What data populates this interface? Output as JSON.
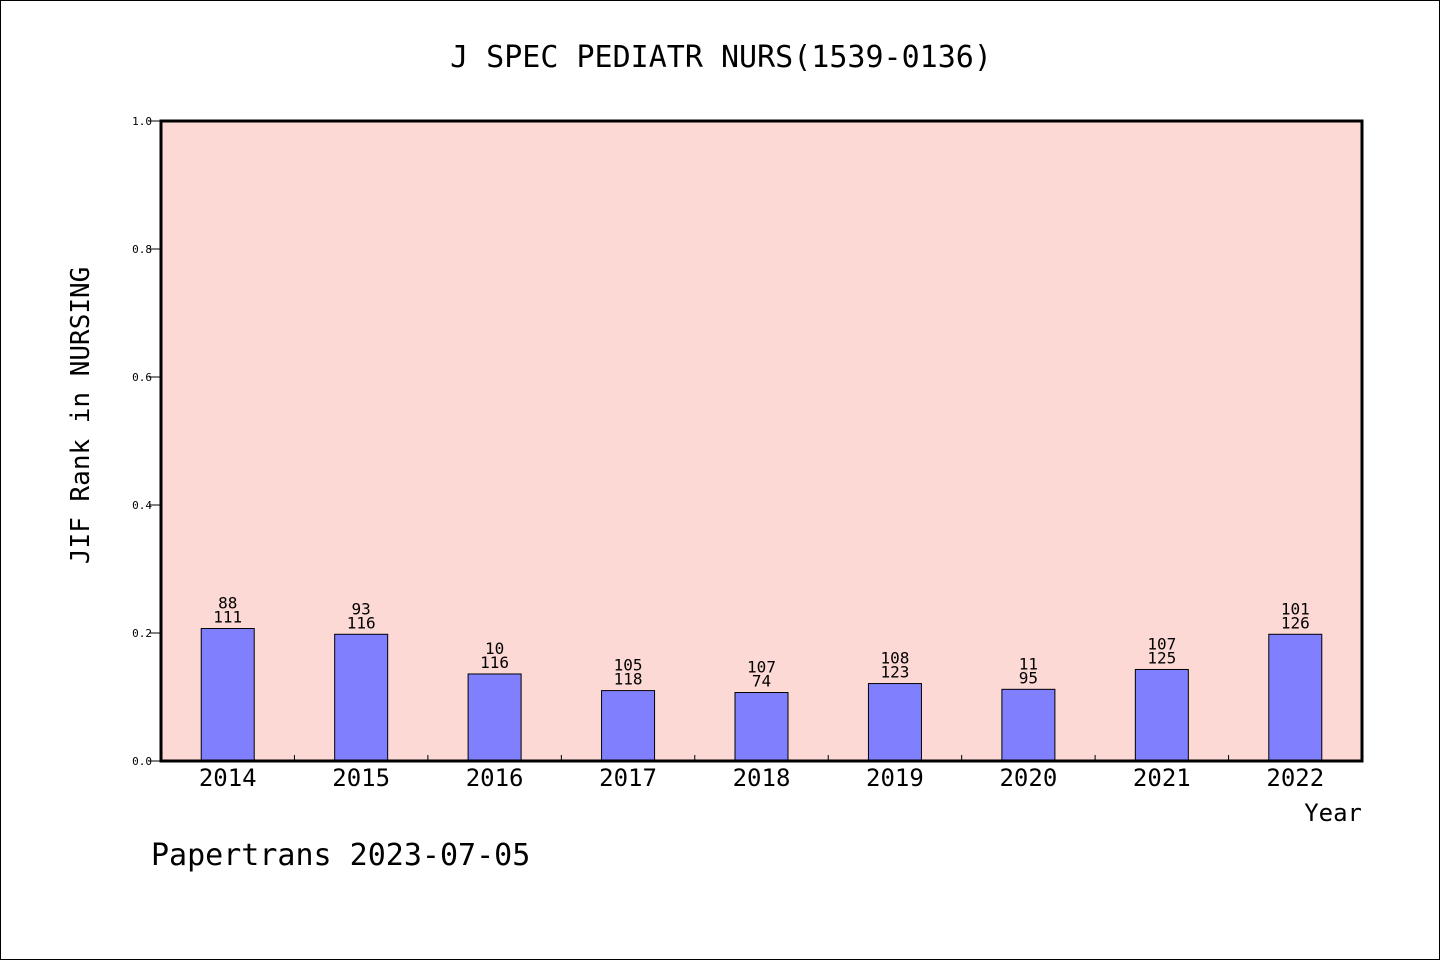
{
  "chart_data": {
    "type": "bar",
    "title": "J SPEC PEDIATR NURS(1539-0136)",
    "ylabel": "JIF Rank in NURSING",
    "xlabel": "Year",
    "ylim": [
      0,
      1.0
    ],
    "yticks": [
      0.0,
      0.2,
      0.4,
      0.6,
      0.8,
      1.0
    ],
    "ytick_labels": [
      "0.0",
      "0.2",
      "0.4",
      "0.6",
      "0.8",
      "1.0"
    ],
    "categories": [
      "2014",
      "2015",
      "2016",
      "2017",
      "2018",
      "2019",
      "2020",
      "2021",
      "2022"
    ],
    "values": [
      0.207,
      0.198,
      0.136,
      0.11,
      0.107,
      0.121,
      0.112,
      0.143,
      0.198
    ],
    "labels_top": [
      "88",
      "93",
      "10",
      "105",
      "107",
      "108",
      "11",
      "107",
      "101"
    ],
    "labels_bottom": [
      "111",
      "116",
      "116",
      "118",
      "74",
      "123",
      "95",
      "125",
      "126"
    ],
    "grid": false,
    "colors": {
      "plot_background": "#fdd9d6",
      "bar_fill": "#8080ff",
      "bar_edge": "#000000"
    }
  },
  "footer": "Papertrans 2023-07-05"
}
